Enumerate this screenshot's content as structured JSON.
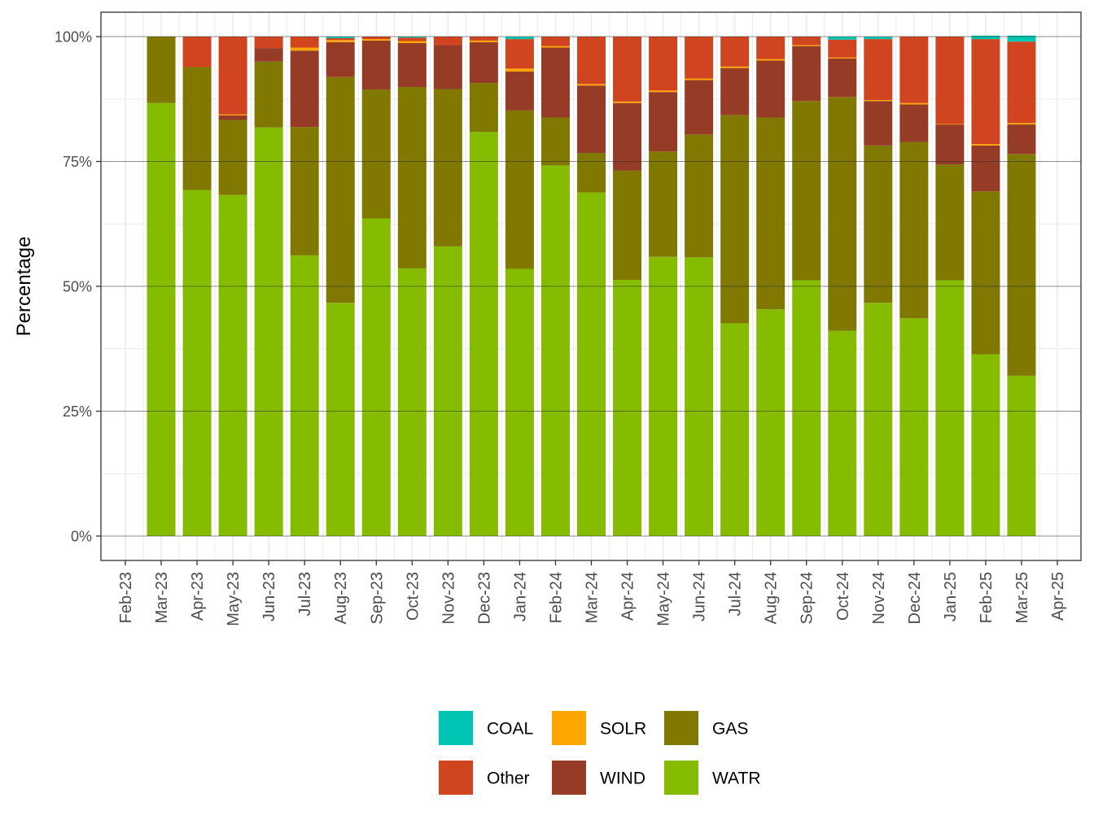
{
  "chart_data": {
    "type": "bar",
    "stacked": true,
    "ylabel": "Percentage",
    "xlabel": "",
    "ylim": [
      0,
      100
    ],
    "y_ticks": [
      "0%",
      "25%",
      "50%",
      "75%",
      "100%"
    ],
    "x_tick_labels": [
      "Feb-23",
      "Mar-23",
      "Apr-23",
      "May-23",
      "Jun-23",
      "Jul-23",
      "Aug-23",
      "Sep-23",
      "Oct-23",
      "Nov-23",
      "Dec-23",
      "Jan-24",
      "Feb-24",
      "Mar-24",
      "Apr-24",
      "May-24",
      "Jun-24",
      "Jul-24",
      "Aug-24",
      "Sep-24",
      "Oct-24",
      "Nov-24",
      "Dec-24",
      "Jan-25",
      "Feb-25",
      "Mar-25",
      "Apr-25"
    ],
    "categories": [
      "Mar-23",
      "Apr-23",
      "May-23",
      "Jun-23",
      "Jul-23",
      "Aug-23",
      "Sep-23",
      "Oct-23",
      "Nov-23",
      "Dec-23",
      "Jan-24",
      "Feb-24",
      "Mar-24",
      "Apr-24",
      "May-24",
      "Jun-24",
      "Jul-24",
      "Aug-24",
      "Sep-24",
      "Oct-24",
      "Nov-24",
      "Dec-24",
      "Jan-25",
      "Feb-25",
      "Mar-25"
    ],
    "stack_order": [
      "WATR",
      "GAS",
      "WIND",
      "SOLR",
      "Other",
      "COAL"
    ],
    "series": [
      {
        "name": "WATR",
        "color": "#86BC00",
        "values": [
          86.7,
          69.3,
          68.3,
          81.8,
          56.2,
          46.7,
          63.6,
          53.6,
          58.0,
          80.9,
          53.5,
          74.2,
          68.8,
          51.3,
          55.9,
          55.8,
          42.6,
          45.4,
          51.2,
          41.1,
          46.7,
          43.6,
          51.2,
          36.4,
          32.1
        ]
      },
      {
        "name": "GAS",
        "color": "#807800",
        "values": [
          13.3,
          24.6,
          15.0,
          13.2,
          25.7,
          45.2,
          25.8,
          36.3,
          31.5,
          9.8,
          31.7,
          9.6,
          7.9,
          21.9,
          21.1,
          24.6,
          41.7,
          38.4,
          35.9,
          46.8,
          31.5,
          35.3,
          23.2,
          32.6,
          44.4
        ]
      },
      {
        "name": "WIND",
        "color": "#963B25",
        "values": [
          0.0,
          0.0,
          0.9,
          2.7,
          15.3,
          7.0,
          9.8,
          8.8,
          8.8,
          8.2,
          7.8,
          14.0,
          13.5,
          13.5,
          11.9,
          10.9,
          9.4,
          11.4,
          11.0,
          7.7,
          8.9,
          7.5,
          8.0,
          9.2,
          5.9
        ]
      },
      {
        "name": "SOLR",
        "color": "#FFA500",
        "values": [
          0.0,
          0.0,
          0.2,
          0.0,
          0.6,
          0.4,
          0.3,
          0.4,
          0.0,
          0.3,
          0.6,
          0.3,
          0.3,
          0.3,
          0.3,
          0.3,
          0.3,
          0.3,
          0.2,
          0.2,
          0.2,
          0.3,
          0.1,
          0.3,
          0.3
        ]
      },
      {
        "name": "Other",
        "color": "#D04520",
        "values": [
          0.0,
          6.1,
          15.6,
          2.3,
          2.2,
          0.4,
          0.5,
          0.7,
          1.7,
          0.8,
          5.9,
          1.9,
          9.5,
          13.0,
          10.8,
          8.4,
          6.0,
          4.5,
          1.7,
          3.6,
          12.2,
          13.3,
          17.5,
          21.0,
          16.3
        ]
      },
      {
        "name": "COAL",
        "color": "#00C5B2",
        "values": [
          0.0,
          0.0,
          0.0,
          0.0,
          0.0,
          0.3,
          0.0,
          0.2,
          0.0,
          0.0,
          0.5,
          0.0,
          0.0,
          0.0,
          0.0,
          0.0,
          0.0,
          0.0,
          0.0,
          0.6,
          0.5,
          0.0,
          0.0,
          0.7,
          1.2
        ]
      }
    ],
    "legend": {
      "placement": "bottom",
      "items": [
        {
          "label": "COAL",
          "color": "#00C5B2"
        },
        {
          "label": "SOLR",
          "color": "#FFA500"
        },
        {
          "label": "GAS",
          "color": "#807800"
        },
        {
          "label": "Other",
          "color": "#D04520"
        },
        {
          "label": "WIND",
          "color": "#963B25"
        },
        {
          "label": "WATR",
          "color": "#86BC00"
        }
      ]
    },
    "grid": true,
    "theme": "bw"
  }
}
